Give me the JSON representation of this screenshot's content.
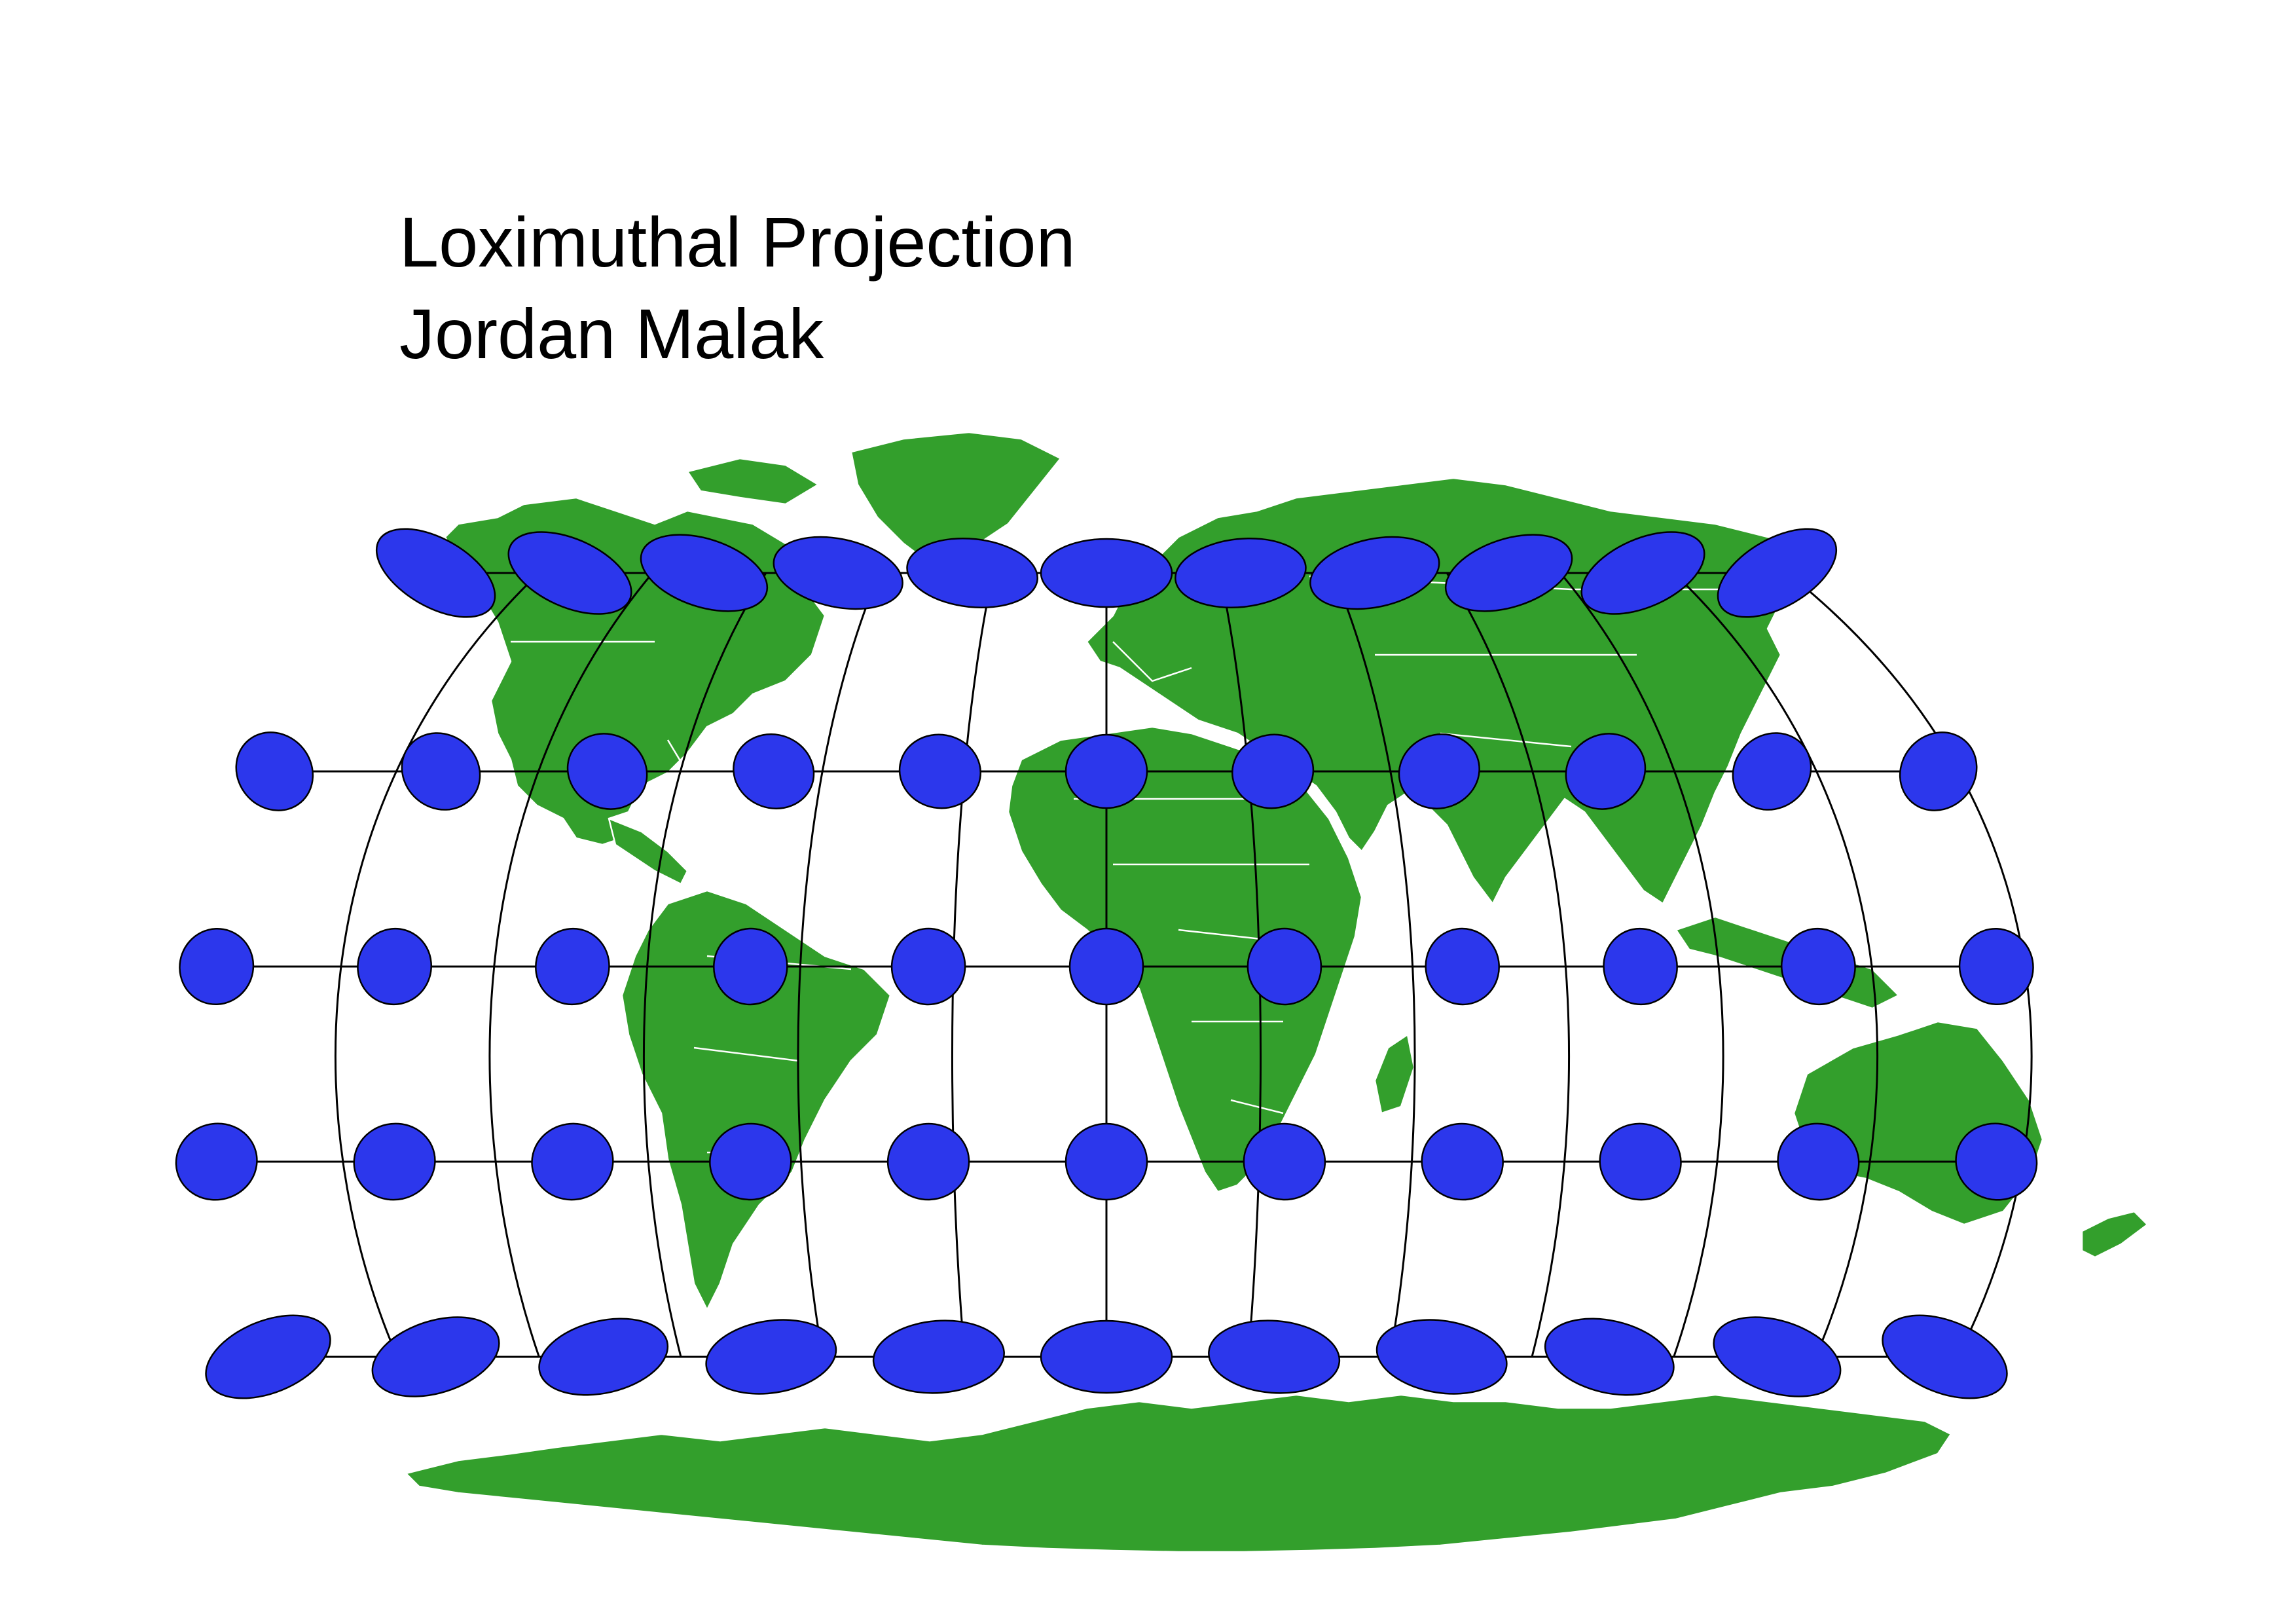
{
  "header": {
    "title": "Loximuthal Projection",
    "author": "Jordan Malak"
  },
  "map": {
    "projection": "Loximuthal",
    "colors": {
      "land": "#339f2c",
      "ocean": "#ffffff",
      "indicatrix": "#2c37ec",
      "graticule": "#000000",
      "borders": "#ffffff"
    },
    "graticule": {
      "parallels_deg": [
        60,
        30,
        0,
        -30,
        -60
      ],
      "meridians_deg": [
        -150,
        -120,
        -90,
        -60,
        -30,
        0,
        30,
        60,
        90,
        120,
        150,
        180
      ]
    },
    "indicatrix_rows": [
      {
        "latitude": 60,
        "count": 11
      },
      {
        "latitude": 30,
        "count": 11
      },
      {
        "latitude": 0,
        "count": 11
      },
      {
        "latitude": -30,
        "count": 11
      },
      {
        "latitude": -60,
        "count": 11
      }
    ]
  }
}
